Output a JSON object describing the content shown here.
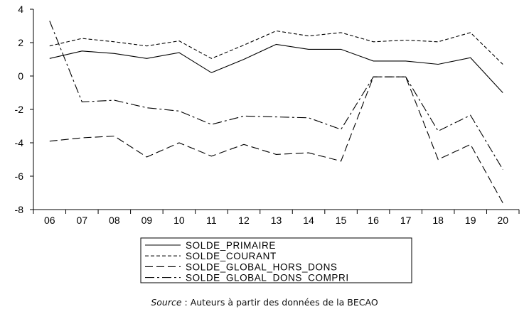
{
  "chart_data": {
    "type": "line",
    "categories": [
      "06",
      "07",
      "08",
      "09",
      "10",
      "11",
      "12",
      "13",
      "14",
      "15",
      "16",
      "17",
      "18",
      "19",
      "20"
    ],
    "ylim": [
      -8,
      4
    ],
    "yticks": [
      4,
      2,
      0,
      -2,
      -4,
      -6,
      -8
    ],
    "grid": false,
    "legend_placement": "bottom",
    "series": [
      {
        "name": "SOLDE_PRIMAIRE",
        "dash": "solid",
        "values": [
          1.05,
          1.5,
          1.35,
          1.05,
          1.4,
          0.2,
          1.0,
          1.9,
          1.6,
          1.6,
          0.9,
          0.9,
          0.7,
          1.1,
          -1.0
        ]
      },
      {
        "name": "SOLDE_COURANT",
        "dash": "short-dash",
        "values": [
          1.8,
          2.25,
          2.05,
          1.8,
          2.1,
          1.05,
          1.85,
          2.7,
          2.4,
          2.6,
          2.05,
          2.15,
          2.05,
          2.6,
          0.7
        ]
      },
      {
        "name": "SOLDE_GLOBAL_HORS_DONS",
        "dash": "long-dash",
        "values": [
          -3.9,
          -3.7,
          -3.6,
          -4.85,
          -4.0,
          -4.8,
          -4.1,
          -4.7,
          -4.6,
          -5.1,
          -0.05,
          -0.05,
          -5.0,
          -4.1,
          -7.6
        ]
      },
      {
        "name": "SOLDE_GLOBAL_DONS_COMPRI",
        "dash": "dash-dot",
        "values": [
          3.3,
          -1.55,
          -1.45,
          -1.9,
          -2.1,
          -2.9,
          -2.4,
          -2.45,
          -2.5,
          -3.2,
          -0.05,
          -0.05,
          -3.3,
          -2.35,
          -5.6
        ]
      }
    ]
  },
  "caption": {
    "source_label": "Source",
    "source_text": " : Auteurs à partir des données de la BECAO"
  }
}
